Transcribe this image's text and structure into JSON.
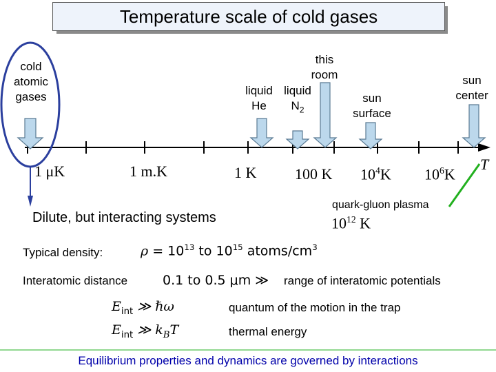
{
  "title": "Temperature scale of cold gases",
  "cold_atoms_label": [
    "cold",
    "atomic",
    "gases"
  ],
  "this_room_label": [
    "this",
    "room"
  ],
  "liquid_he_label": [
    "liquid",
    "He"
  ],
  "liquid_n2_label": "liquid",
  "n2_base": "N",
  "n2_sub": "2",
  "sun_surface_label": [
    "sun",
    "surface"
  ],
  "sun_center_label": [
    "sun",
    "center"
  ],
  "axis_label": "T",
  "ticks": {
    "t1": "1 μK",
    "t2": "1 m.K",
    "t3": "1 K",
    "t4": "100 K",
    "t5_base": "10",
    "t5_exp": "4",
    "t5_unit": "K",
    "t6_base": "10",
    "t6_exp": "6",
    "t6_unit": "K"
  },
  "quark_label": "quark-gluon plasma",
  "quark_temp_base": "10",
  "quark_temp_exp": "12",
  "quark_temp_unit": " K",
  "dilute_text": "Dilute, but interacting systems",
  "density_label": "Typical density:",
  "density_rho": "ρ",
  "density_eq": " = 10",
  "density_exp1": "13",
  "density_to": " to 10",
  "density_exp2": "15",
  "density_unit": " atoms/cm",
  "density_unit_exp": "3",
  "interatomic_label": "Interatomic distance",
  "interatomic_formula": "0.1 to 0.5 μm ≫",
  "interatomic_desc": "range of interatomic potentials",
  "eint1_E": "E",
  "eint1_sub": "int",
  "eint1_rel": " ≫ ℏω",
  "eint1_desc": "quantum of the motion in the trap",
  "eint2_E": "E",
  "eint2_sub": "int",
  "eint2_rel": " ≫ k",
  "eint2_relsub": "B",
  "eint2_T": "T",
  "eint2_desc": "thermal energy",
  "footer": "Equilibrium properties and dynamics are governed by interactions",
  "colors": {
    "arrow_fill": "#bcd8ec",
    "arrow_stroke": "#5a7a93",
    "circle": "#2b3f9e",
    "green": "#22b01f",
    "footer_text": "#0000aa",
    "blue_pointer": "#2b3f9e"
  }
}
